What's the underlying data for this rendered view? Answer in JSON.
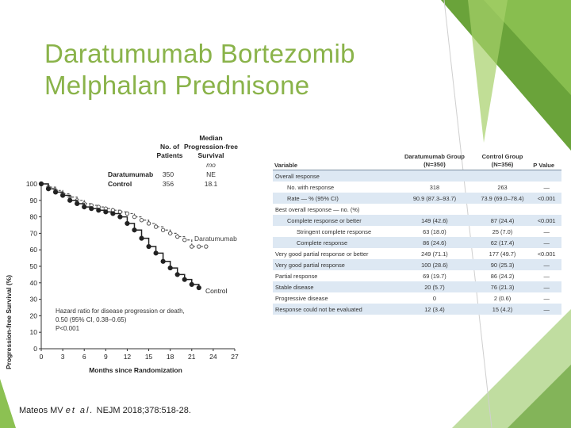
{
  "slide": {
    "title_line1": "Daratumumab Bortezomib",
    "title_line2": "Melphalan Prednisone",
    "citation_authors": "Mateos MV",
    "citation_etal": "et al.",
    "citation_ref": "NEJM 2018;378:518-28.",
    "colors": {
      "title": "#8ab34a",
      "accent": "#6aa33a",
      "table_shade": "#dde8f3"
    }
  },
  "table": {
    "headers": {
      "variable": "Variable",
      "dara_line1": "Daratumumab Group",
      "dara_line2": "(N=350)",
      "ctrl_line1": "Control Group",
      "ctrl_line2": "(N=356)",
      "pvalue": "P Value"
    },
    "rows": [
      {
        "label": "Overall response",
        "dara": "",
        "ctrl": "",
        "p": "",
        "indent": 0
      },
      {
        "label": "No. with response",
        "dara": "318",
        "ctrl": "263",
        "p": "—",
        "indent": 1
      },
      {
        "label": "Rate — % (95% CI)",
        "dara": "90.9 (87.3–93.7)",
        "ctrl": "73.9 (69.0–78.4)",
        "p": "<0.001",
        "indent": 1
      },
      {
        "label": "Best overall response — no. (%)",
        "dara": "",
        "ctrl": "",
        "p": "",
        "indent": 0
      },
      {
        "label": "Complete response or better",
        "dara": "149 (42.6)",
        "ctrl": "87 (24.4)",
        "p": "<0.001",
        "indent": 1
      },
      {
        "label": "Stringent complete response",
        "dara": "63 (18.0)",
        "ctrl": "25 (7.0)",
        "p": "—",
        "indent": 2
      },
      {
        "label": "Complete response",
        "dara": "86 (24.6)",
        "ctrl": "62 (17.4)",
        "p": "—",
        "indent": 2
      },
      {
        "label": "Very good partial response or better",
        "dara": "249 (71.1)",
        "ctrl": "177 (49.7)",
        "p": "<0.001",
        "indent": 0
      },
      {
        "label": "Very good partial response",
        "dara": "100 (28.6)",
        "ctrl": "90 (25.3)",
        "p": "—",
        "indent": 0
      },
      {
        "label": "Partial response",
        "dara": "69 (19.7)",
        "ctrl": "86 (24.2)",
        "p": "—",
        "indent": 0
      },
      {
        "label": "Stable disease",
        "dara": "20 (5.7)",
        "ctrl": "76 (21.3)",
        "p": "—",
        "indent": 0
      },
      {
        "label": "Progressive disease",
        "dara": "0",
        "ctrl": "2 (0.6)",
        "p": "—",
        "indent": 0
      },
      {
        "label": "Response could not be evaluated",
        "dara": "12 (3.4)",
        "ctrl": "15 (4.2)",
        "p": "—",
        "indent": 0
      }
    ]
  },
  "chart_data": {
    "type": "line",
    "title": "",
    "xlabel": "Months since Randomization",
    "ylabel": "Progression-free Survival (%)",
    "xlim": [
      0,
      27
    ],
    "ylim": [
      0,
      100
    ],
    "xticks": [
      0,
      3,
      6,
      9,
      12,
      15,
      18,
      21,
      24,
      27
    ],
    "yticks": [
      0,
      10,
      20,
      30,
      40,
      50,
      60,
      70,
      80,
      90,
      100
    ],
    "table_headers": {
      "patients_line1": "No. of",
      "patients_line2": "Patients",
      "median_line1": "Median",
      "median_line2": "Progression-free",
      "median_line3": "Survival",
      "median_unit": "mo"
    },
    "series": [
      {
        "name": "Daratumumab",
        "patients": "350",
        "median": "NE",
        "color": "#555555",
        "x": [
          0,
          1,
          2,
          3,
          4,
          5,
          6,
          7,
          8,
          9,
          10,
          11,
          12,
          13,
          14,
          15,
          16,
          17,
          18,
          19,
          20,
          21,
          22,
          23
        ],
        "y": [
          100,
          98,
          96,
          94,
          92,
          90,
          88,
          87,
          86,
          85,
          84,
          83,
          82,
          80,
          78,
          76,
          74,
          72,
          70,
          68,
          66,
          62,
          62,
          62
        ]
      },
      {
        "name": "Control",
        "patients": "356",
        "median": "18.1",
        "color": "#222222",
        "x": [
          0,
          1,
          2,
          3,
          4,
          5,
          6,
          7,
          8,
          9,
          10,
          11,
          12,
          13,
          14,
          15,
          16,
          17,
          18,
          19,
          20,
          21,
          22
        ],
        "y": [
          100,
          97,
          95,
          93,
          90,
          88,
          86,
          85,
          84,
          83,
          82,
          80,
          76,
          72,
          67,
          62,
          58,
          53,
          49,
          45,
          42,
          39,
          37
        ]
      }
    ],
    "annotation_line1": "Hazard ratio for disease progression or death,",
    "annotation_line2": "0.50 (95% CI, 0.38–0.65)",
    "annotation_line3": "P<0.001"
  }
}
